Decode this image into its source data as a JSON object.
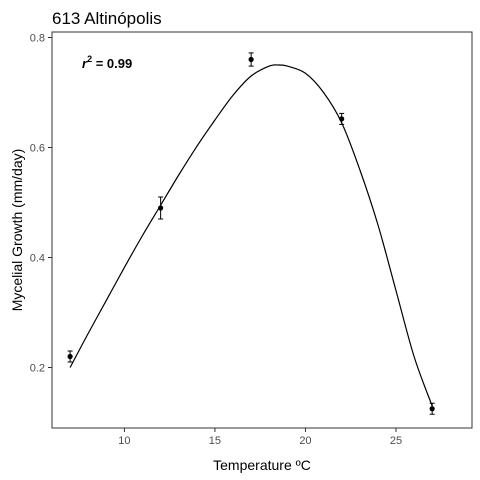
{
  "chart_data": {
    "type": "scatter",
    "title": "613 Altinópolis",
    "xlabel": "Temperature ºC",
    "ylabel": "Mycelial Growth (mm/day)",
    "xlim": [
      6,
      29.2
    ],
    "ylim": [
      0.09,
      0.81
    ],
    "xticks": [
      10,
      15,
      20,
      25
    ],
    "yticks": [
      0.2,
      0.4,
      0.6,
      0.8
    ],
    "xtick_labels": [
      "10",
      "15",
      "20",
      "25"
    ],
    "ytick_labels": [
      "0.2",
      "0.4",
      "0.6",
      "0.8"
    ],
    "grid": false,
    "annotation": {
      "prefix": "r",
      "superscript": "2",
      "suffix": " = 0.99"
    },
    "points": [
      {
        "x": 7,
        "y": 0.22,
        "err": 0.01
      },
      {
        "x": 12,
        "y": 0.49,
        "err": 0.02
      },
      {
        "x": 17,
        "y": 0.76,
        "err": 0.012
      },
      {
        "x": 22,
        "y": 0.652,
        "err": 0.01
      },
      {
        "x": 27,
        "y": 0.125,
        "err": 0.01
      }
    ],
    "fit_curve": {
      "x": [
        7,
        8,
        9,
        10,
        11,
        12,
        13,
        14,
        15,
        16,
        17,
        18,
        18.5,
        19,
        20,
        21,
        22,
        23,
        24,
        25,
        26,
        27
      ],
      "y": [
        0.2,
        0.262,
        0.322,
        0.382,
        0.44,
        0.495,
        0.55,
        0.602,
        0.65,
        0.695,
        0.73,
        0.748,
        0.75,
        0.748,
        0.735,
        0.7,
        0.645,
        0.56,
        0.46,
        0.34,
        0.22,
        0.13
      ]
    }
  }
}
